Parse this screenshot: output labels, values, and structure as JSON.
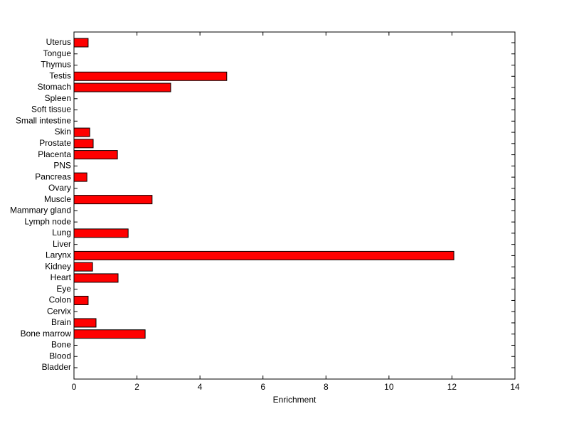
{
  "chart_data": {
    "type": "barh",
    "xlabel": "Enrichment",
    "categories": [
      "Bladder",
      "Blood",
      "Bone",
      "Bone marrow",
      "Brain",
      "Cervix",
      "Colon",
      "Eye",
      "Heart",
      "Kidney",
      "Larynx",
      "Liver",
      "Lung",
      "Lymph node",
      "Mammary gland",
      "Muscle",
      "Ovary",
      "Pancreas",
      "PNS",
      "Placenta",
      "Prostate",
      "Skin",
      "Small intestine",
      "Soft tissue",
      "Spleen",
      "Stomach",
      "Testis",
      "Thymus",
      "Tongue",
      "Uterus"
    ],
    "values": [
      0,
      0,
      0,
      2.26,
      0.7,
      0,
      0.45,
      0,
      1.4,
      0.59,
      12.06,
      0,
      1.72,
      0,
      0,
      2.48,
      0,
      0.41,
      0,
      1.38,
      0.61,
      0.5,
      0,
      0,
      0,
      3.07,
      4.85,
      0,
      0,
      0.45
    ],
    "color": "#ff0000",
    "xlim": [
      0,
      14
    ],
    "xticks": [
      0,
      2,
      4,
      6,
      8,
      10,
      12,
      14
    ],
    "grid": false
  }
}
